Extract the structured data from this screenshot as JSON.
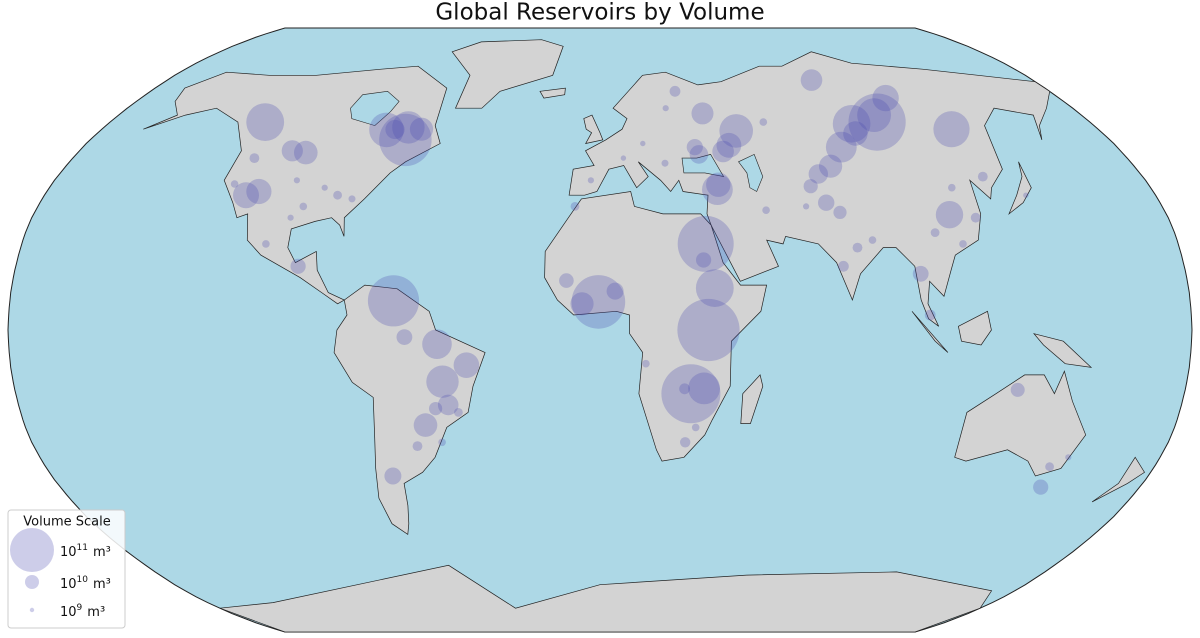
{
  "title": "Global Reservoirs by Volume",
  "fill_color": "#4b4bb0",
  "fill_opacity": 0.28,
  "legend": {
    "title": "Volume Scale",
    "entries": [
      {
        "base": "10",
        "exponent": "11",
        "unit": "m³",
        "value": 100000000000
      },
      {
        "base": "10",
        "exponent": "10",
        "unit": "m³",
        "value": 10000000000
      },
      {
        "base": "10",
        "exponent": "9",
        "unit": "m³",
        "value": 1000000000
      }
    ]
  },
  "reservoirs": [
    {
      "lon": 28,
      "lat": -17,
      "volume": 180000000000
    },
    {
      "lon": -0.5,
      "lat": 7.5,
      "volume": 148000000000
    },
    {
      "lon": 32.9,
      "lat": 23,
      "volume": 162000000000
    },
    {
      "lon": 33,
      "lat": 0,
      "volume": 200000000000
    },
    {
      "lon": 101.8,
      "lat": 56,
      "volume": 169000000000
    },
    {
      "lon": 102.5,
      "lat": 58,
      "volume": 59000000000
    },
    {
      "lon": 92,
      "lat": 55.5,
      "volume": 73000000000
    },
    {
      "lon": 127,
      "lat": 54,
      "volume": 68000000000
    },
    {
      "lon": 88,
      "lat": 68.5,
      "volume": 24000000000
    },
    {
      "lon": 112,
      "lat": 63,
      "volume": 36000000000
    },
    {
      "lon": 91.4,
      "lat": 52.8,
      "volume": 31000000000
    },
    {
      "lon": 84,
      "lat": 49,
      "volume": 49000000000
    },
    {
      "lon": -63,
      "lat": 7.8,
      "volume": 135000000000
    },
    {
      "lon": -68.7,
      "lat": 51,
      "volume": 142000000000
    },
    {
      "lon": -69.5,
      "lat": 54.5,
      "volume": 54000000000
    },
    {
      "lon": -77,
      "lat": 53.8,
      "volume": 62000000000
    },
    {
      "lon": -74,
      "lat": 53.9,
      "volume": 19000000000
    },
    {
      "lon": -64.5,
      "lat": 54,
      "volume": 28000000000
    },
    {
      "lon": -123,
      "lat": 56,
      "volume": 74000000000
    },
    {
      "lon": -114.7,
      "lat": 36,
      "volume": 35000000000
    },
    {
      "lon": -111,
      "lat": 37,
      "volume": 33000000000
    },
    {
      "lon": -101.4,
      "lat": 47.5,
      "volume": 29000000000
    },
    {
      "lon": -106.4,
      "lat": 48,
      "volume": 23000000000
    },
    {
      "lon": 49,
      "lat": 53.5,
      "volume": 58000000000
    },
    {
      "lon": 45,
      "lat": 49.5,
      "volume": 32000000000
    },
    {
      "lon": 42.5,
      "lat": 47.8,
      "volume": 24000000000
    },
    {
      "lon": 38.5,
      "lat": 58.5,
      "volume": 25000000000
    },
    {
      "lon": 33,
      "lat": 49,
      "volume": 13500000000
    },
    {
      "lon": 34,
      "lat": 47,
      "volume": 18000000000
    },
    {
      "lon": 38.3,
      "lat": 37.5,
      "volume": 49000000000
    },
    {
      "lon": 38.8,
      "lat": 38.8,
      "volume": 31000000000
    },
    {
      "lon": 77.7,
      "lat": 43.8,
      "volume": 28000000000
    },
    {
      "lon": 72.7,
      "lat": 41.7,
      "volume": 19500000000
    },
    {
      "lon": 69,
      "lat": 38.4,
      "volume": 10500000000
    },
    {
      "lon": 72.7,
      "lat": 34,
      "volume": 14000000000
    },
    {
      "lon": 76.4,
      "lat": 31.4,
      "volume": 9000000000
    },
    {
      "lon": 111,
      "lat": 30.8,
      "volume": 39000000000
    },
    {
      "lon": 35.1,
      "lat": 11.2,
      "volume": 74000000000
    },
    {
      "lon": 32,
      "lat": 18.7,
      "volume": 12000000000
    },
    {
      "lon": 4.6,
      "lat": 10.4,
      "volume": 15000000000
    },
    {
      "lon": -5.5,
      "lat": 7,
      "volume": 28000000000
    },
    {
      "lon": -10.3,
      "lat": 13.2,
      "volume": 11000000000
    },
    {
      "lon": 32,
      "lat": -15.6,
      "volume": 52000000000
    },
    {
      "lon": 26,
      "lat": -15.7,
      "volume": 6000000000
    },
    {
      "lon": -49.6,
      "lat": -3.8,
      "volume": 45000000000
    },
    {
      "lon": -40.8,
      "lat": -9.4,
      "volume": 34000000000
    },
    {
      "lon": -48.3,
      "lat": -13.8,
      "volume": 54000000000
    },
    {
      "lon": -54.6,
      "lat": -25.4,
      "volume": 29000000000
    },
    {
      "lon": -59.5,
      "lat": -1.9,
      "volume": 13000000000
    },
    {
      "lon": -47,
      "lat": -20,
      "volume": 22000000000
    },
    {
      "lon": -68,
      "lat": -39,
      "volume": 15000000000
    },
    {
      "lon": 146,
      "lat": -36.5,
      "volume": 4000000000
    },
    {
      "lon": 147,
      "lat": -42,
      "volume": 12000000000
    },
    {
      "lon": 150.5,
      "lat": -34,
      "volume": 2000000000
    },
    {
      "lon": 128.5,
      "lat": -16,
      "volume": 10000000000
    },
    {
      "lon": -85,
      "lat": 36,
      "volume": 4000000000
    },
    {
      "lon": -95,
      "lat": 33,
      "volume": 3000000000
    },
    {
      "lon": -90,
      "lat": 38,
      "volume": 2000000000
    },
    {
      "lon": -100,
      "lat": 40,
      "volume": 2000000000
    },
    {
      "lon": -80,
      "lat": 35,
      "volume": 2500000000
    },
    {
      "lon": -120,
      "lat": 39,
      "volume": 3000000000
    },
    {
      "lon": -98,
      "lat": 30,
      "volume": 2000000000
    },
    {
      "lon": -118,
      "lat": 46,
      "volume": 5000000000
    },
    {
      "lon": -104,
      "lat": 23,
      "volume": 3000000000
    },
    {
      "lon": -93,
      "lat": 17,
      "volume": 12000000000
    },
    {
      "lon": -3,
      "lat": 40,
      "volume": 2000000000
    },
    {
      "lon": 8,
      "lat": 46,
      "volume": 1500000000
    },
    {
      "lon": 22,
      "lat": 44.6,
      "volume": 2500000000
    },
    {
      "lon": 15,
      "lat": 50,
      "volume": 1500000000
    },
    {
      "lon": 25,
      "lat": 60,
      "volume": 2000000000
    },
    {
      "lon": 30,
      "lat": 65,
      "volume": 6000000000
    },
    {
      "lon": 60,
      "lat": 56,
      "volume": 3000000000
    },
    {
      "lon": 80,
      "lat": 22,
      "volume": 5000000000
    },
    {
      "lon": 75,
      "lat": 17,
      "volume": 6000000000
    },
    {
      "lon": 85,
      "lat": 24,
      "volume": 3000000000
    },
    {
      "lon": 98.5,
      "lat": 15,
      "volume": 13000000000
    },
    {
      "lon": 100.5,
      "lat": 4,
      "volume": 6000000000
    },
    {
      "lon": 105,
      "lat": 26,
      "volume": 4000000000
    },
    {
      "lon": 115,
      "lat": 38,
      "volume": 3000000000
    },
    {
      "lon": 119,
      "lat": 30,
      "volume": 5000000000
    },
    {
      "lon": 113,
      "lat": 23,
      "volume": 3000000000
    },
    {
      "lon": 127,
      "lat": 41,
      "volume": 5000000000
    },
    {
      "lon": 138,
      "lat": 36,
      "volume": 1500000000
    },
    {
      "lon": 53,
      "lat": 32,
      "volume": 3000000000
    },
    {
      "lon": 66,
      "lat": 33,
      "volume": 2000000000
    },
    {
      "lon": 30,
      "lat": -26,
      "volume": 3000000000
    },
    {
      "lon": 27,
      "lat": -30,
      "volume": 5500000000
    },
    {
      "lon": 14,
      "lat": -9,
      "volume": 3000000000
    },
    {
      "lon": -8,
      "lat": 33,
      "volume": 4000000000
    },
    {
      "lon": -44,
      "lat": -22,
      "volume": 4000000000
    },
    {
      "lon": -51,
      "lat": -21,
      "volume": 9000000000
    },
    {
      "lon": -50,
      "lat": -30,
      "volume": 3000000000
    },
    {
      "lon": -58,
      "lat": -31,
      "volume": 5000000000
    }
  ]
}
